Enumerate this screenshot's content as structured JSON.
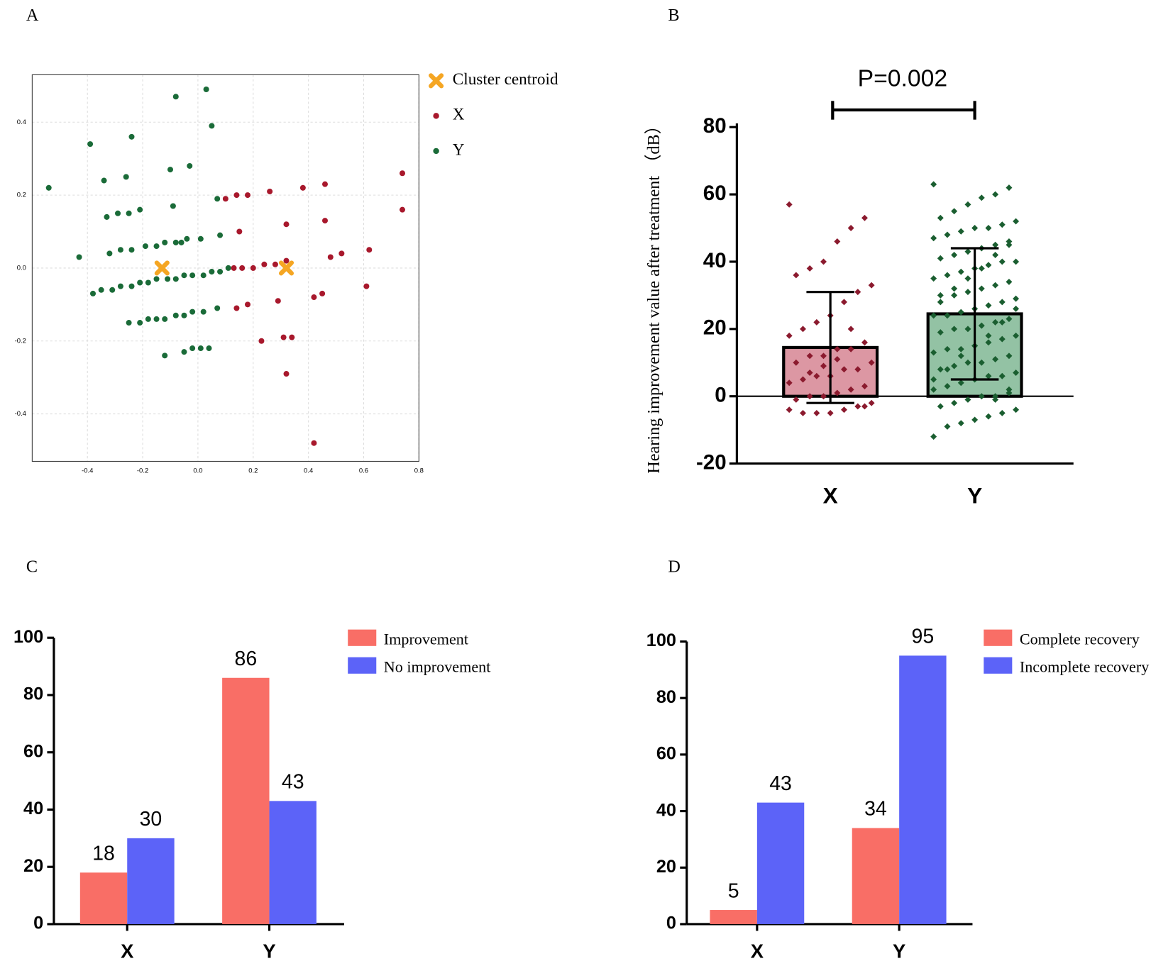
{
  "chart_data": [
    {
      "type": "scatter",
      "title": "A",
      "xlim": [
        -0.6,
        0.8
      ],
      "ylim": [
        -0.53,
        0.53
      ],
      "xticks": [
        -0.4,
        -0.2,
        {
          "value": 0,
          "label": "0.0"
        },
        0.2,
        0.4,
        0.6,
        0.8
      ],
      "yticks": [
        0.4,
        0.2,
        {
          "value": 0,
          "label": "0.0"
        },
        -0.2,
        -0.4
      ],
      "grid": true,
      "series": [
        {
          "name": "Cluster centroid",
          "color": "#f5a623",
          "marker": "x",
          "x": [
            -0.13,
            0.32
          ],
          "y": [
            0.0,
            0.0
          ]
        },
        {
          "name": "X",
          "color": "#a8182c",
          "marker": "circle",
          "x": [
            0.1,
            0.14,
            0.18,
            0.26,
            0.38,
            0.46,
            0.74,
            0.74,
            0.15,
            0.32,
            0.46,
            0.62,
            0.48,
            0.52,
            0.13,
            0.16,
            0.2,
            0.24,
            0.28,
            0.32,
            0.42,
            0.45,
            0.29,
            0.14,
            0.18,
            0.23,
            0.31,
            0.34,
            0.61,
            0.32,
            0.42
          ],
          "y": [
            0.19,
            0.2,
            0.2,
            0.21,
            0.22,
            0.23,
            0.26,
            0.16,
            0.1,
            0.12,
            0.13,
            0.05,
            0.03,
            0.04,
            0.0,
            0.0,
            0.0,
            0.01,
            0.01,
            0.02,
            -0.08,
            -0.07,
            -0.09,
            -0.11,
            -0.1,
            -0.2,
            -0.19,
            -0.19,
            -0.05,
            -0.29,
            -0.48
          ]
        },
        {
          "name": "Y",
          "color": "#1a6b38",
          "marker": "circle",
          "x": [
            -0.54,
            -0.39,
            -0.24,
            -0.08,
            0.03,
            0.05,
            -0.34,
            -0.26,
            -0.1,
            -0.03,
            -0.09,
            0.07,
            -0.33,
            -0.29,
            -0.25,
            -0.21,
            -0.43,
            -0.32,
            -0.28,
            -0.24,
            -0.19,
            -0.15,
            -0.12,
            -0.08,
            -0.06,
            -0.04,
            0.01,
            0.08,
            -0.38,
            -0.35,
            -0.31,
            -0.28,
            -0.24,
            -0.21,
            -0.18,
            -0.15,
            -0.11,
            -0.08,
            -0.05,
            -0.02,
            0.02,
            0.05,
            0.08,
            0.11,
            -0.25,
            -0.21,
            -0.18,
            -0.15,
            -0.12,
            -0.08,
            -0.05,
            -0.02,
            0.02,
            0.07,
            -0.12,
            -0.05,
            -0.02,
            0.01,
            0.04
          ],
          "y": [
            0.22,
            0.34,
            0.36,
            0.47,
            0.49,
            0.39,
            0.24,
            0.25,
            0.27,
            0.28,
            0.17,
            0.19,
            0.14,
            0.15,
            0.15,
            0.16,
            0.03,
            0.04,
            0.05,
            0.05,
            0.06,
            0.06,
            0.07,
            0.07,
            0.07,
            0.08,
            0.08,
            0.09,
            -0.07,
            -0.06,
            -0.06,
            -0.05,
            -0.05,
            -0.04,
            -0.04,
            -0.03,
            -0.03,
            -0.03,
            -0.02,
            -0.02,
            -0.02,
            -0.01,
            -0.01,
            0.0,
            -0.15,
            -0.15,
            -0.14,
            -0.14,
            -0.14,
            -0.13,
            -0.13,
            -0.12,
            -0.12,
            -0.11,
            -0.24,
            -0.23,
            -0.22,
            -0.22,
            -0.22
          ]
        }
      ]
    },
    {
      "type": "dotbar",
      "title": "B",
      "ylabel": "Hearing improvement value after treatment （dB）",
      "annotation": "P=0.002",
      "categories": [
        "X",
        "Y"
      ],
      "values": [
        14.5,
        24.5
      ],
      "errors": [
        16.5,
        19.5
      ],
      "colors": [
        "#dc97a3",
        "#93c2a4"
      ],
      "point_colors": [
        "#8b1a2e",
        "#1a5e30"
      ],
      "ylim": [
        -20,
        80
      ],
      "yticks": [
        -20,
        0,
        20,
        40,
        60,
        80
      ],
      "points": [
        [
          57,
          53,
          50,
          46,
          40,
          38,
          36,
          33,
          31,
          28,
          24,
          22,
          20,
          18,
          16,
          14,
          14,
          12,
          12,
          10,
          10,
          8,
          8,
          6,
          6,
          5,
          4,
          3,
          2,
          1,
          0,
          0,
          -1,
          -2,
          -3,
          -4,
          -5,
          -5,
          -5,
          -4,
          -3,
          20,
          11,
          9,
          7
        ],
        [
          63,
          62,
          60,
          59,
          57,
          55,
          53,
          52,
          51,
          50,
          50,
          49,
          48,
          47,
          46,
          45,
          44,
          43,
          42,
          41,
          40,
          40,
          39,
          38,
          37,
          36,
          35,
          34,
          33,
          32,
          31,
          30,
          30,
          29,
          28,
          27,
          26,
          25,
          24,
          24,
          23,
          22,
          21,
          20,
          20,
          19,
          18,
          17,
          16,
          15,
          14,
          14,
          13,
          12,
          11,
          10,
          10,
          9,
          8,
          7,
          6,
          6,
          5,
          4,
          3,
          2,
          1,
          0,
          0,
          -1,
          -2,
          -3,
          -4,
          -5,
          -6,
          -7,
          -8,
          -9,
          -12,
          45,
          42,
          38,
          35,
          32,
          28,
          26,
          22,
          18,
          15,
          12,
          8,
          5,
          2,
          -1
        ]
      ]
    },
    {
      "type": "bar",
      "title": "C",
      "categories": [
        "X",
        "Y"
      ],
      "ylim": [
        0,
        100
      ],
      "yticks": [
        0,
        20,
        40,
        60,
        80,
        100
      ],
      "series": [
        {
          "name": "Improvement",
          "color": "#f96e66",
          "values": [
            18,
            86
          ]
        },
        {
          "name": "No improvement",
          "color": "#5c63f8",
          "values": [
            30,
            43
          ]
        }
      ]
    },
    {
      "type": "bar",
      "title": "D",
      "categories": [
        "X",
        "Y"
      ],
      "ylim": [
        0,
        100
      ],
      "yticks": [
        0,
        20,
        40,
        60,
        80,
        100
      ],
      "series": [
        {
          "name": "Complete recovery",
          "color": "#f96e66",
          "values": [
            5,
            34
          ]
        },
        {
          "name": "Incomplete recovery",
          "color": "#5c63f8",
          "values": [
            43,
            95
          ]
        }
      ]
    }
  ]
}
